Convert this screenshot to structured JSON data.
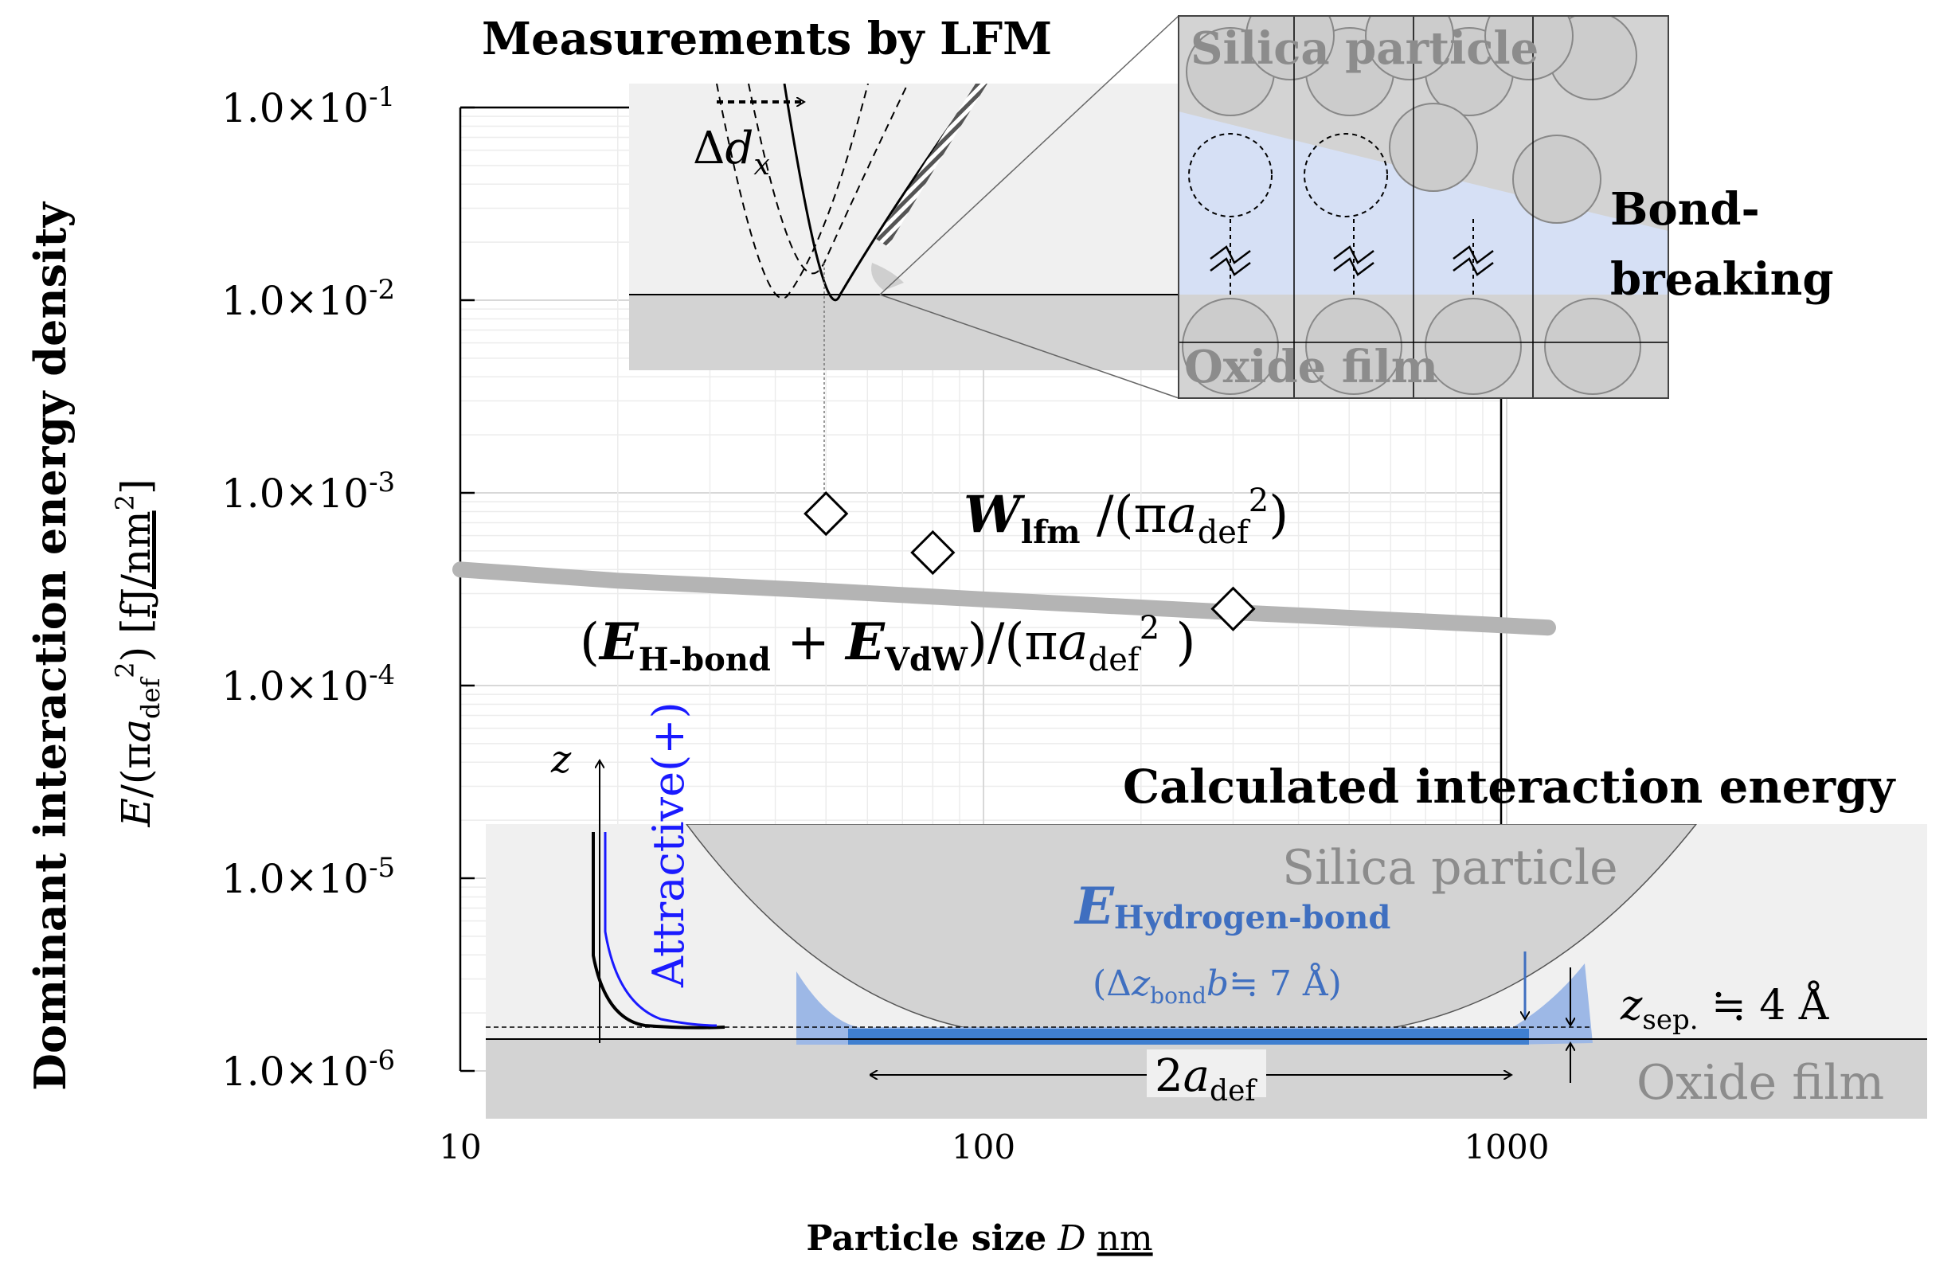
{
  "chart_data": {
    "type": "scatter",
    "x_scale": "log",
    "y_scale": "log",
    "xlim": [
      10,
      1200
    ],
    "ylim": [
      1e-06,
      0.1
    ],
    "ylabel_title": "Dominant interaction energy density",
    "ylabel_expr": "E/(πa_def^2) [fJ/nm^2]",
    "ylabel_unit": "fJ/nm",
    "xlabel_prefix": "Particle size",
    "xlabel_var": "D",
    "xlabel_unit": "nm",
    "x_ticks": [
      {
        "value": 10,
        "label": "10"
      },
      {
        "value": 100,
        "label": "100"
      },
      {
        "value": 1000,
        "label": "1000"
      }
    ],
    "y_ticks": [
      {
        "value": 0.1,
        "mantissa": "1.0",
        "times": "×",
        "base": "10",
        "exp": "-1"
      },
      {
        "value": 0.01,
        "mantissa": "1.0",
        "times": "×",
        "base": "10",
        "exp": "-2"
      },
      {
        "value": 0.001,
        "mantissa": "1.0",
        "times": "×",
        "base": "10",
        "exp": "-3"
      },
      {
        "value": 0.0001,
        "mantissa": "1.0",
        "times": "×",
        "base": "10",
        "exp": "-4"
      },
      {
        "value": 1e-05,
        "mantissa": "1.0",
        "times": "×",
        "base": "10",
        "exp": "-5"
      },
      {
        "value": 1e-06,
        "mantissa": "1.0",
        "times": "×",
        "base": "10",
        "exp": "-6"
      }
    ],
    "series": [
      {
        "name": "W_lfm/(πa_def^2)",
        "type": "scatter",
        "marker": "diamond",
        "points": [
          {
            "x": 50,
            "y": 0.00078
          },
          {
            "x": 80,
            "y": 0.00049
          },
          {
            "x": 300,
            "y": 0.00025
          }
        ]
      },
      {
        "name": "(E_H-bond + E_VdW)/(πa_def^2)",
        "type": "line",
        "color": "#b4b4b4",
        "points": [
          {
            "x": 10,
            "y": 0.0004
          },
          {
            "x": 20,
            "y": 0.00035
          },
          {
            "x": 50,
            "y": 0.00031
          },
          {
            "x": 100,
            "y": 0.00028
          },
          {
            "x": 300,
            "y": 0.00024
          },
          {
            "x": 700,
            "y": 0.000215
          },
          {
            "x": 1200,
            "y": 0.0002
          }
        ]
      }
    ]
  },
  "annotations": {
    "lfm_title": "Measurements by LFM",
    "delta": "Δ",
    "dx_var": "d",
    "dx_sub": "x",
    "silica_top": "Silica particle",
    "oxide_top": "Oxide film",
    "bond_line1": "Bond-",
    "bond_line2": "breaking",
    "w_label_main": "W",
    "w_label_sub": "lfm",
    "w_label_rest": " /(π",
    "a_var": "a",
    "def_sub": "def",
    "sq": "2",
    "close_paren": ")",
    "e_label_open": "(",
    "e_label_E1": "E",
    "e_label_sub1": "H-bond",
    "e_label_plus": " + ",
    "e_label_E2": "E",
    "e_label_sub2": "VdW",
    "e_label_mid": ")/(π",
    "e_label_close": " )",
    "calc_title": "Calculated interaction energy",
    "z_axis": "z",
    "attractive": "Attractive(+)",
    "silica_bottom": "Silica particle",
    "ehb_E": "E",
    "ehb_sub": "Hydrogen-bond",
    "bond_width_open": "(Δ",
    "bond_width_z": "z",
    "bond_width_sub": "bond",
    "bond_width_rest": "≒ 7 Å)",
    "bond_width_b": "b",
    "zsep_var": "z",
    "zsep_sub": "sep.",
    "zsep_rest": " ≒ 4 Å",
    "two_adef": "2",
    "oxide_bottom": "Oxide film"
  },
  "colors": {
    "blue": "#1a1aff",
    "light_blue": "#d6e0f5",
    "bond_blue": "#3f7fd0",
    "gray_fill": "#d3d3d3",
    "panel_fill": "#f0f0f0"
  }
}
